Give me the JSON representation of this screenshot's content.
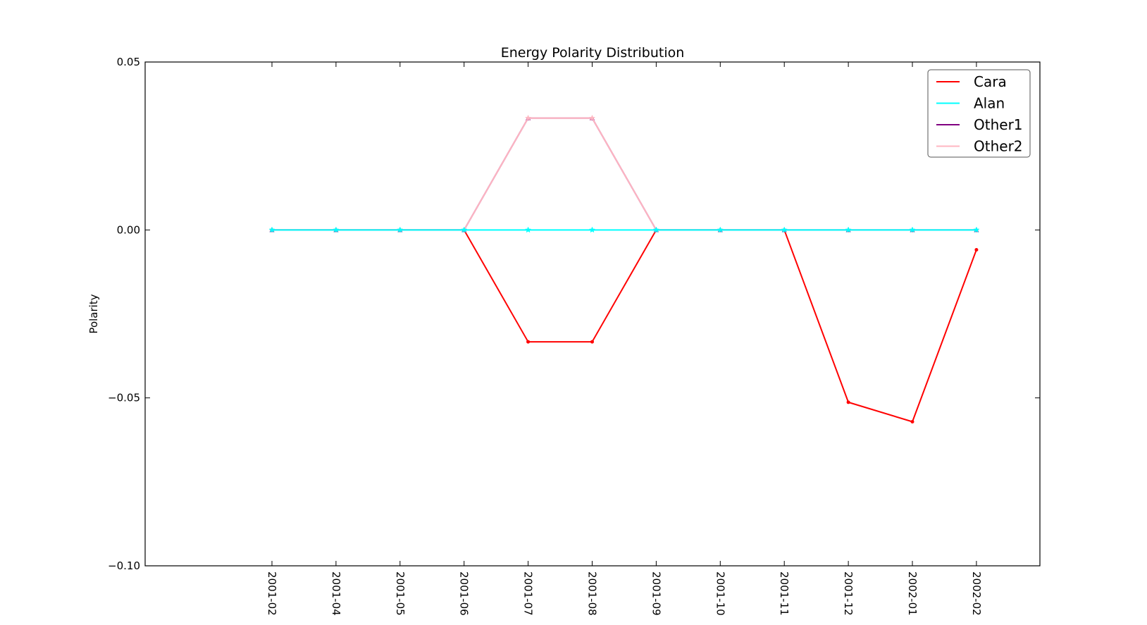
{
  "chart_data": {
    "type": "line",
    "title": "Energy Polarity Distribution",
    "xlabel": "",
    "ylabel": "Polarity",
    "categories": [
      "2001-02",
      "2001-04",
      "2001-05",
      "2001-06",
      "2001-07",
      "2001-08",
      "2001-09",
      "2001-10",
      "2001-11",
      "2001-12",
      "2002-01",
      "2002-02"
    ],
    "ylim": [
      -0.1,
      0.05
    ],
    "yticks": [
      0.05,
      0.0,
      -0.05,
      -0.1
    ],
    "ytick_labels": [
      "0.05",
      "0.00",
      "−0.05",
      "−0.10"
    ],
    "grid": false,
    "legend_position": "top-right",
    "series": [
      {
        "name": "Cara",
        "color": "#ff0000",
        "marker": "dot",
        "values": [
          0.0,
          0.0,
          0.0,
          0.0,
          -0.0333,
          -0.0333,
          0.0,
          0.0,
          0.0,
          -0.0513,
          -0.0571,
          -0.0059
        ]
      },
      {
        "name": "Alan",
        "color": "#00ffff",
        "marker": "star",
        "values": [
          0.0,
          0.0,
          0.0,
          0.0,
          0.0,
          0.0,
          0.0,
          0.0,
          0.0,
          0.0,
          0.0,
          0.0
        ]
      },
      {
        "name": "Other1",
        "color": "#800080",
        "marker": "triangle",
        "values": [
          0.0,
          0.0,
          0.0,
          0.0,
          0.0333,
          0.0333,
          0.0,
          0.0,
          0.0,
          0.0,
          0.0,
          0.0
        ]
      },
      {
        "name": "Other2",
        "color": "#ffb6c1",
        "marker": "star",
        "values": [
          0.0,
          0.0,
          0.0,
          0.0,
          0.0333,
          0.0333,
          0.0,
          0.0,
          0.0,
          0.0,
          0.0,
          0.0
        ]
      }
    ]
  }
}
